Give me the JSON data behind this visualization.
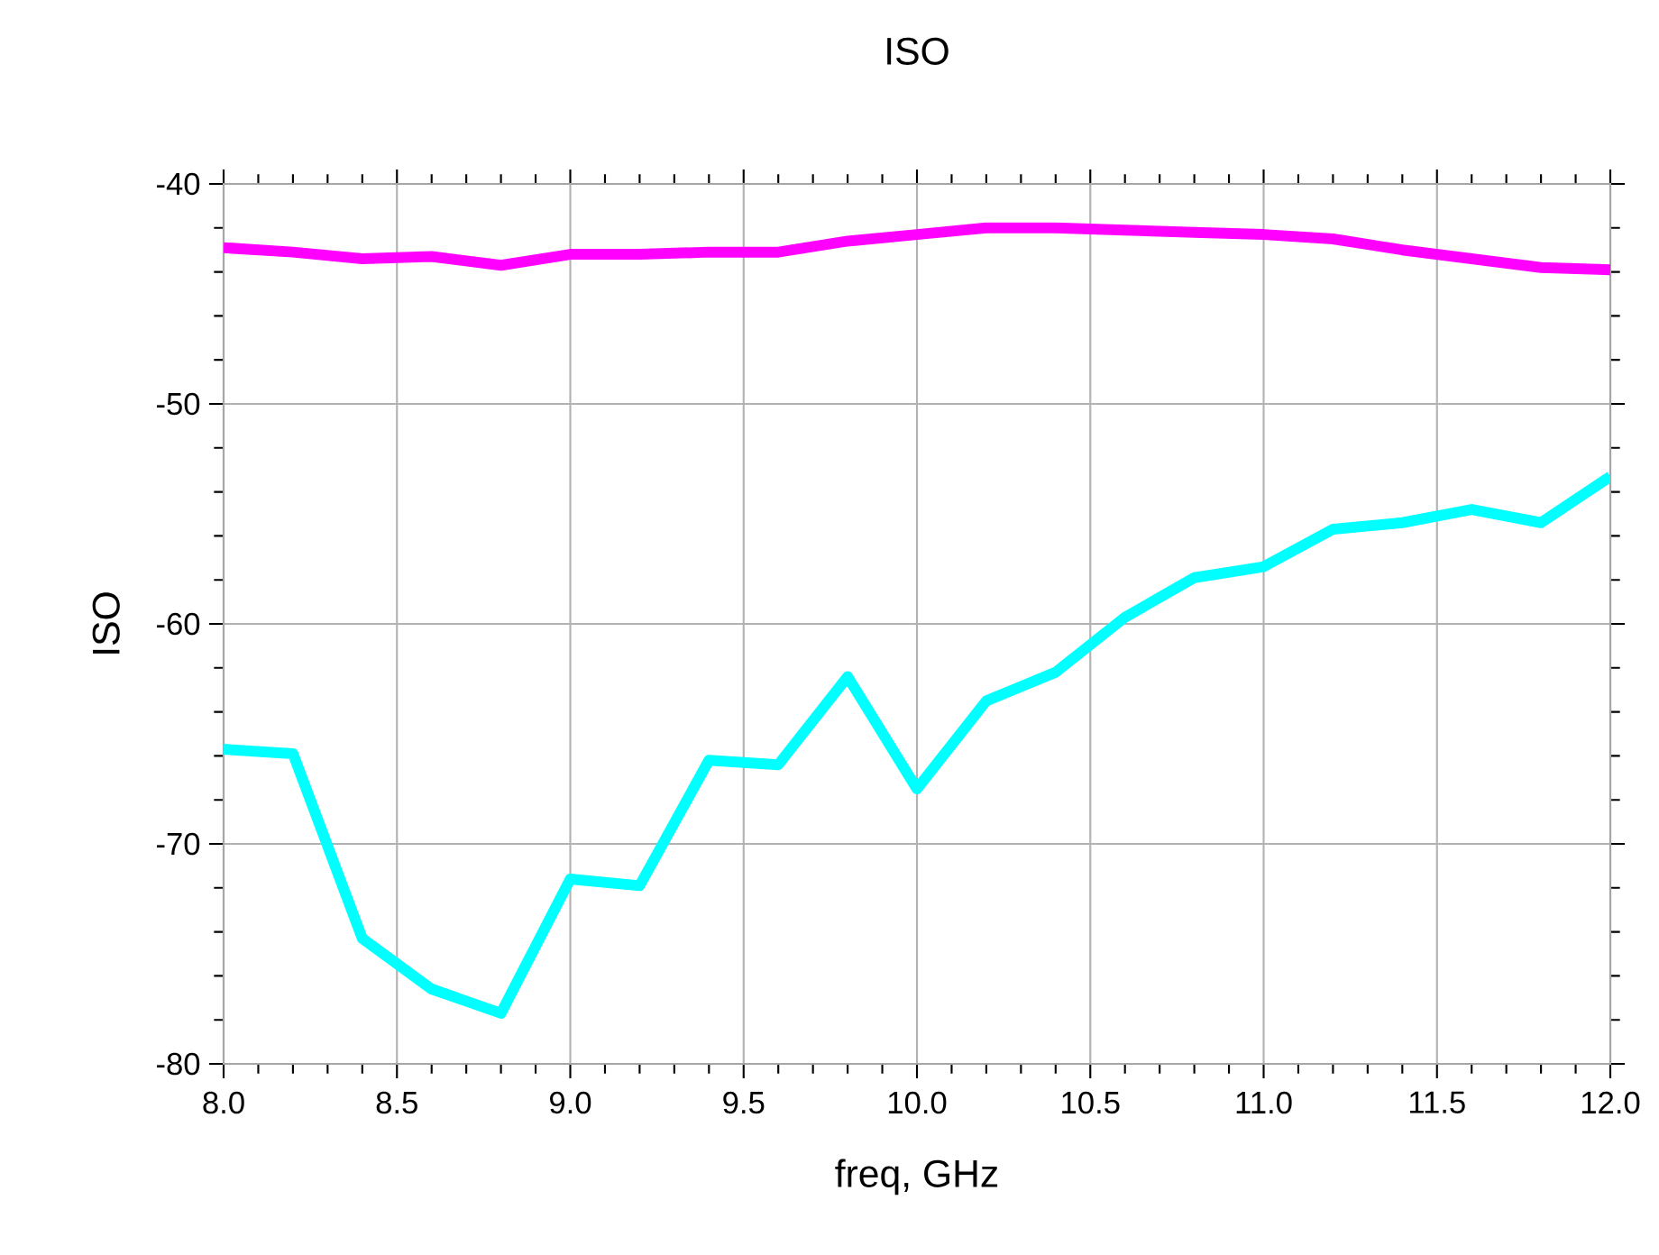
{
  "chart_data": {
    "type": "line",
    "title": "ISO",
    "xlabel": "freq, GHz",
    "ylabel": "ISO",
    "x": [
      8.0,
      8.2,
      8.4,
      8.6,
      8.8,
      9.0,
      9.2,
      9.4,
      9.6,
      9.8,
      10.0,
      10.2,
      10.4,
      10.6,
      10.8,
      11.0,
      11.2,
      11.4,
      11.6,
      11.8,
      12.0
    ],
    "series": [
      {
        "color": "#ff00ff",
        "values": [
          -42.9,
          -43.1,
          -43.4,
          -43.3,
          -43.7,
          -43.2,
          -43.2,
          -43.1,
          -43.1,
          -42.6,
          -42.3,
          -42.0,
          -42.0,
          -42.1,
          -42.2,
          -42.3,
          -42.5,
          -43.0,
          -43.4,
          -43.8,
          -43.9
        ]
      },
      {
        "color": "#00ffff",
        "values": [
          -65.7,
          -65.9,
          -74.3,
          -76.6,
          -77.7,
          -71.6,
          -71.9,
          -66.2,
          -66.4,
          -62.4,
          -67.5,
          -63.5,
          -62.2,
          -59.7,
          -57.9,
          -57.4,
          -55.7,
          -55.4,
          -54.8,
          -55.4,
          -53.3
        ]
      }
    ],
    "xlim": [
      8.0,
      12.0
    ],
    "ylim": [
      -80,
      -40
    ],
    "xticks": [
      {
        "value": 8,
        "label": "8.0"
      },
      {
        "value": 8.5,
        "label": "8.5"
      },
      {
        "value": 9,
        "label": "9.0"
      },
      {
        "value": 9.5,
        "label": "9.5"
      },
      {
        "value": 10,
        "label": "10.0"
      },
      {
        "value": 10.5,
        "label": "10.5"
      },
      {
        "value": 11,
        "label": "11.0"
      },
      {
        "value": 11.5,
        "label": "11.5"
      },
      {
        "value": 12,
        "label": "12.0"
      }
    ],
    "yticks": [
      -80,
      -70,
      -60,
      -50,
      -40
    ],
    "grid": true,
    "marker": "none",
    "line_style": "solid"
  }
}
